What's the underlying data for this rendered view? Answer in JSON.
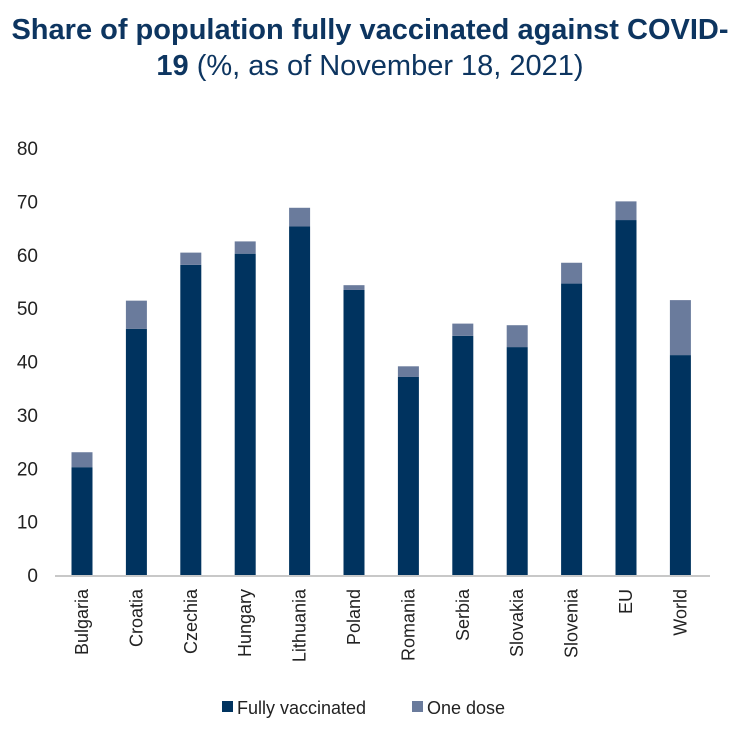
{
  "chart_data": {
    "type": "bar",
    "stacked": true,
    "title_bold": "Share of population fully vaccinated against COVID-19",
    "title_rest": " (%, as of November 18, 2021)",
    "xlabel": "",
    "ylabel": "",
    "ylim": [
      0,
      80
    ],
    "yticks": [
      0,
      10,
      20,
      30,
      40,
      50,
      60,
      70,
      80
    ],
    "grid": false,
    "legend_position": "bottom",
    "categories": [
      "Bulgaria",
      "Croatia",
      "Czechia",
      "Hungary",
      "Lithuania",
      "Poland",
      "Romania",
      "Serbia",
      "Slovakia",
      "Slovenia",
      "EU",
      "World"
    ],
    "series": [
      {
        "name": "Fully vaccinated",
        "color": "#00335f",
        "values": [
          20.2,
          46.1,
          58.1,
          60.2,
          65.3,
          53.4,
          37.1,
          44.8,
          42.7,
          54.6,
          66.5,
          41.2
        ]
      },
      {
        "name": "One dose",
        "color": "#6a7b9c",
        "values": [
          2.8,
          5.3,
          2.3,
          2.3,
          3.5,
          0.9,
          2.0,
          2.3,
          4.1,
          3.9,
          3.5,
          10.3
        ]
      }
    ]
  }
}
